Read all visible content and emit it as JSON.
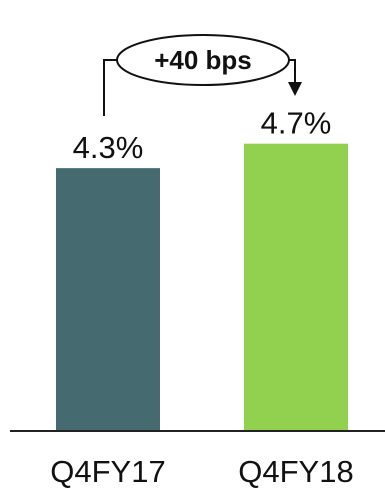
{
  "chart_data": {
    "type": "bar",
    "categories": [
      "Q4FY17",
      "Q4FY18"
    ],
    "values": [
      4.3,
      4.7
    ],
    "value_labels": [
      "4.3%",
      "4.7%"
    ],
    "colors": [
      "#456b70",
      "#92d050"
    ],
    "ylim": [
      0,
      5.66
    ],
    "title": "",
    "xlabel": "",
    "ylabel": "",
    "grid": false,
    "legend": "none",
    "annotation": {
      "text": "+40 bps",
      "from_category": "Q4FY17",
      "to_category": "Q4FY18"
    }
  }
}
